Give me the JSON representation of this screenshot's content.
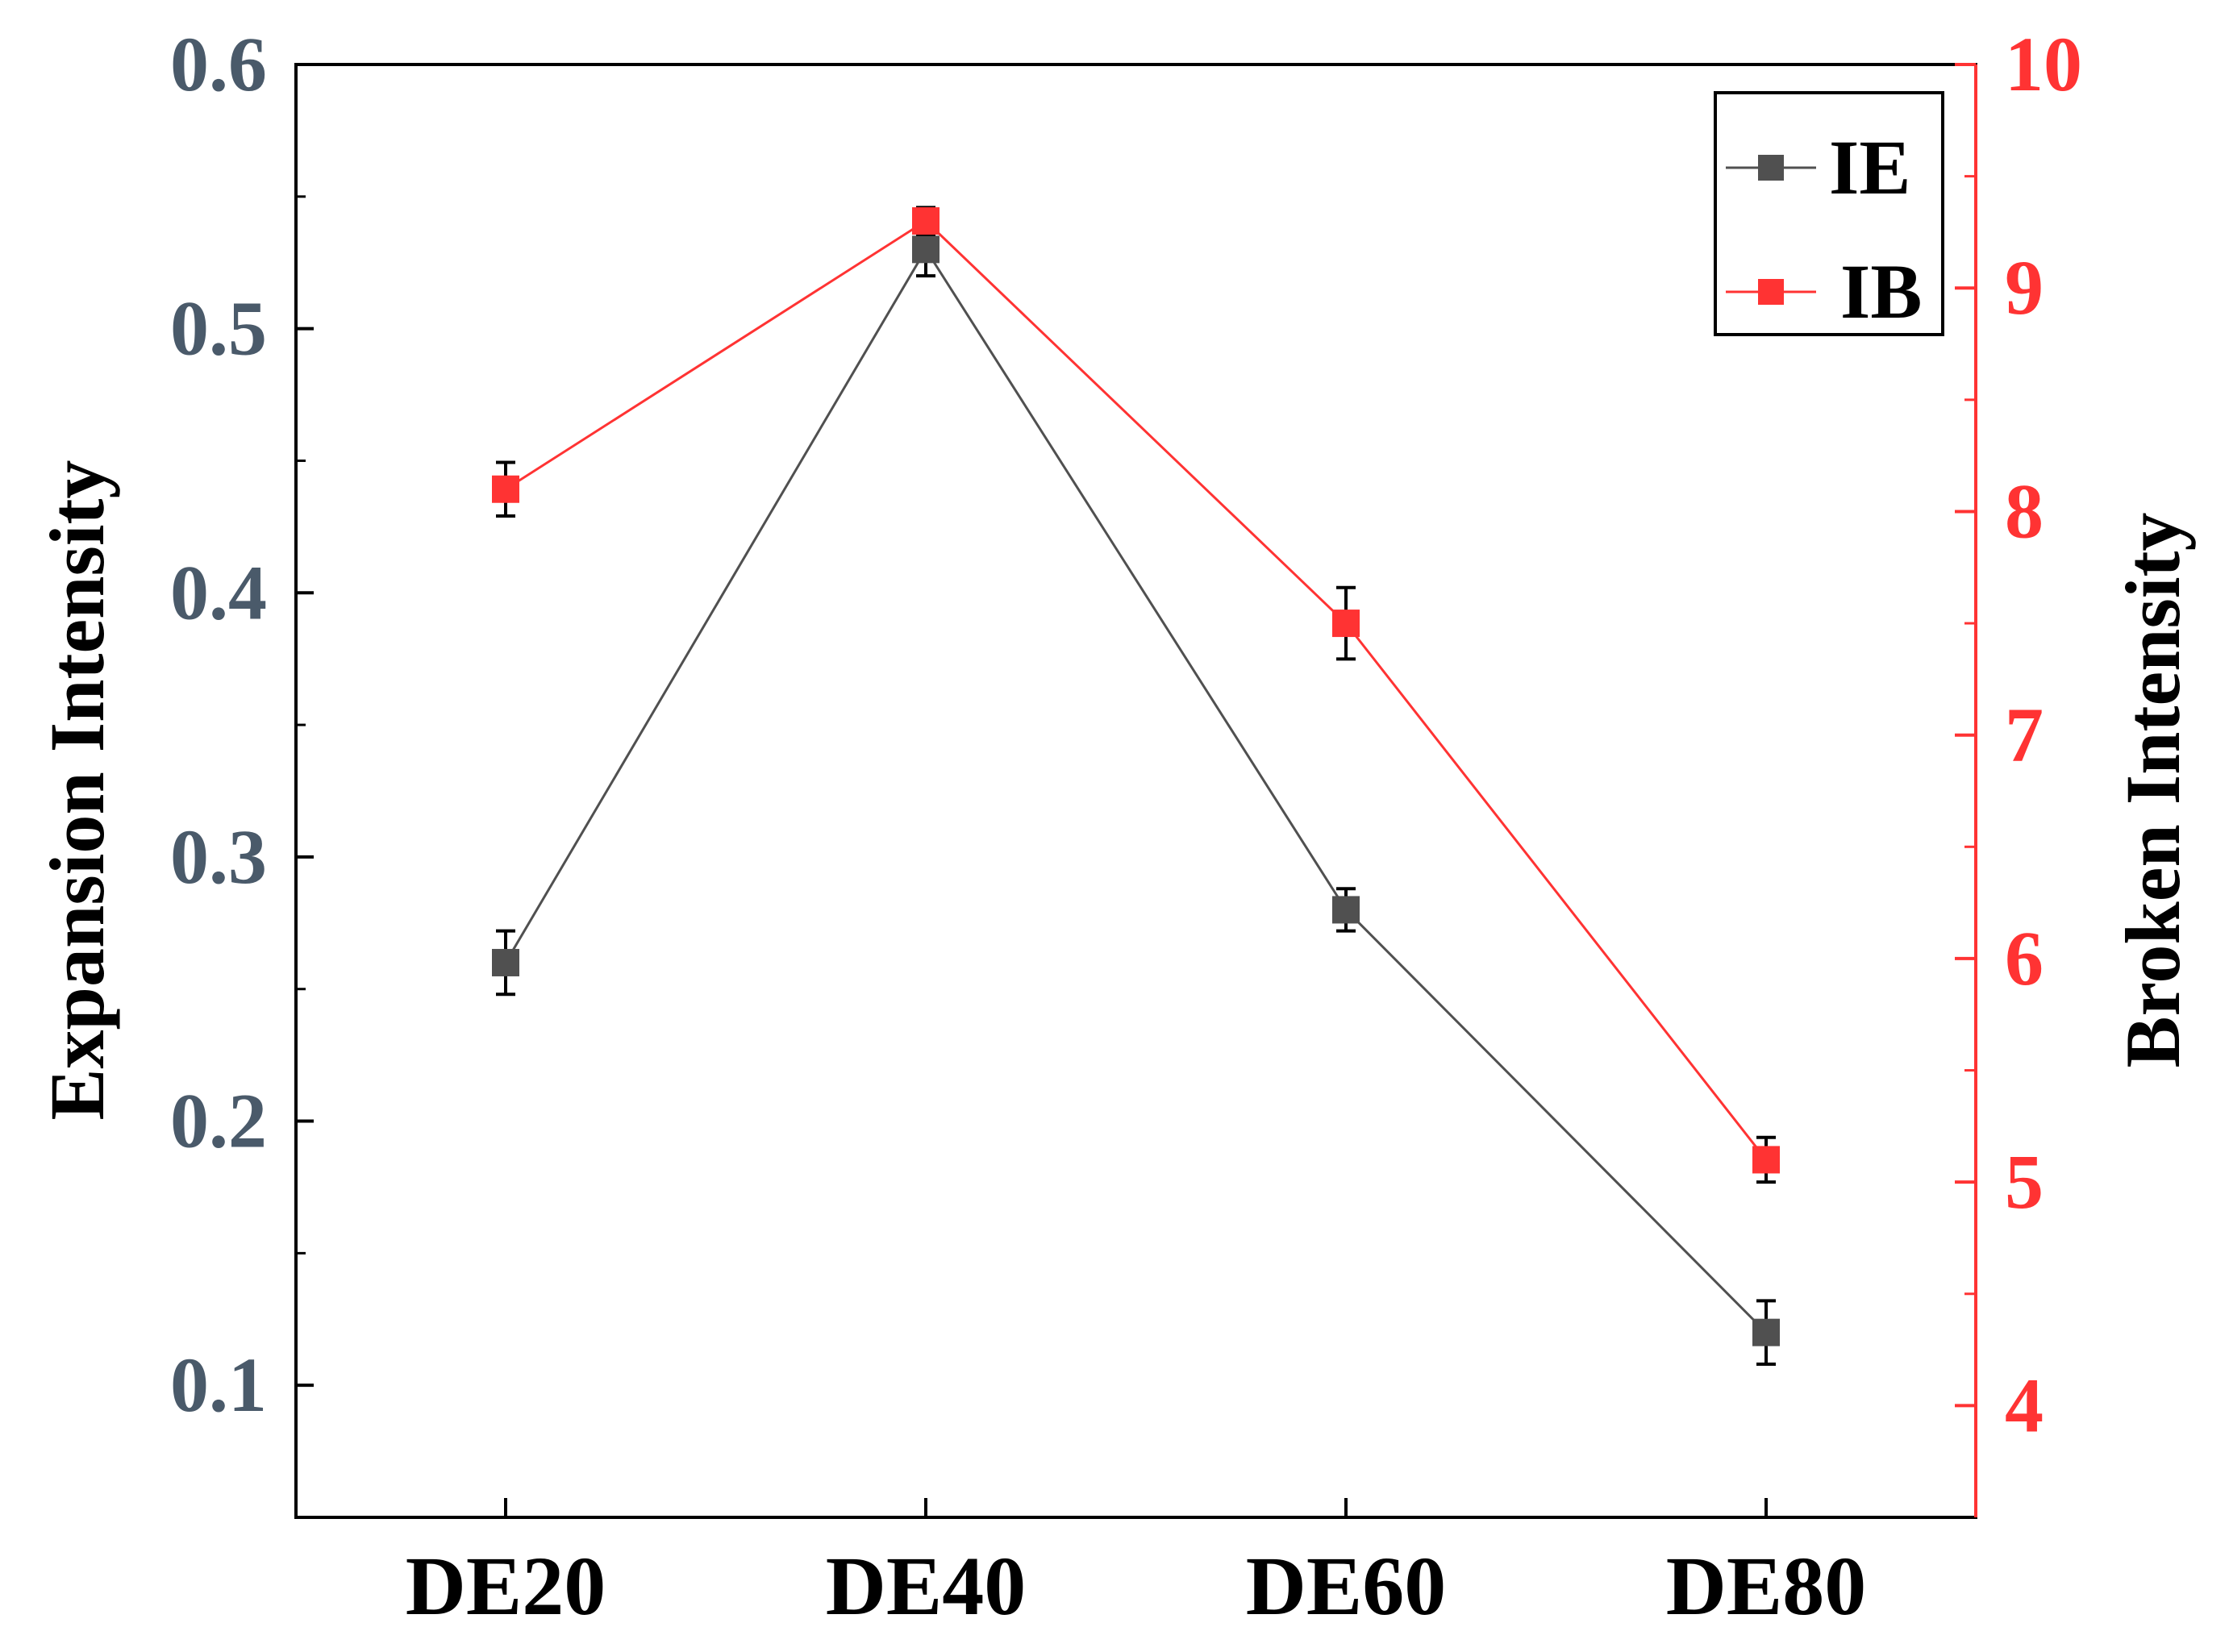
{
  "chart_data": {
    "type": "line",
    "categories": [
      "DE20",
      "DE40",
      "DE60",
      "DE80"
    ],
    "series": [
      {
        "name": "IE",
        "axis": "left",
        "color": "#505050",
        "values": [
          0.26,
          0.53,
          0.28,
          0.12
        ],
        "errors": [
          0.012,
          0.01,
          0.008,
          0.012
        ]
      },
      {
        "name": "IB",
        "axis": "right",
        "color": "#ff3333",
        "values": [
          8.1,
          9.3,
          7.5,
          5.1
        ],
        "errors": [
          0.12,
          0.06,
          0.16,
          0.1
        ]
      }
    ],
    "ylabel": "Expansion Intensity",
    "ylabel_right": "Broken Intensity",
    "ylim": [
      0.05,
      0.6
    ],
    "ylim_right": [
      3.5,
      10
    ],
    "yticks": [
      "0.1",
      "0.2",
      "0.3",
      "0.4",
      "0.5",
      "0.6"
    ],
    "yticks_right": [
      "4",
      "5",
      "6",
      "7",
      "8",
      "9",
      "10"
    ],
    "left_axis_color": "#4a5a6a",
    "right_axis_color": "#ff3333",
    "legend_position": "top-right",
    "grid": false
  }
}
